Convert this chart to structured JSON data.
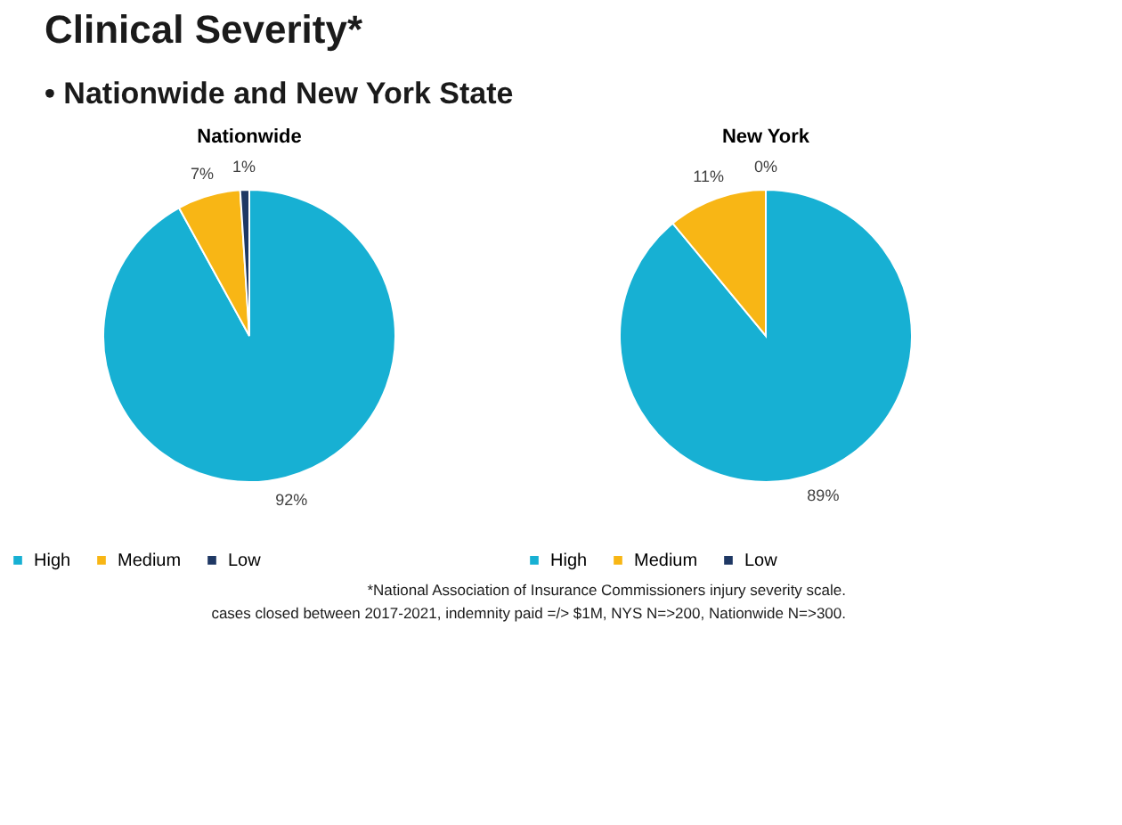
{
  "chart_data": [
    {
      "type": "pie",
      "title": "Nationwide",
      "categories": [
        "High",
        "Medium",
        "Low"
      ],
      "values": [
        92,
        7,
        1
      ],
      "colors": [
        "#17b0d3",
        "#f8b615",
        "#1f3864"
      ],
      "value_labels": [
        "92%",
        "7%",
        "1%"
      ],
      "legend": "bottom",
      "annotations": [
        "Clinical Severity*",
        "• Nationwide and New York State"
      ]
    },
    {
      "type": "pie",
      "title": "New York",
      "categories": [
        "High",
        "Medium",
        "Low"
      ],
      "values": [
        89,
        11,
        0
      ],
      "colors": [
        "#17b0d3",
        "#f8b615",
        "#1f3864"
      ],
      "value_labels": [
        "89%",
        "11%",
        "0%"
      ],
      "legend": "bottom",
      "annotations": [
        "*National Association of Insurance Commissioners injury severity scale.",
        "cases closed between 2017-2021, indemnity paid =/> $1M, NYS N=>200, Nationwide N=>300."
      ]
    }
  ]
}
